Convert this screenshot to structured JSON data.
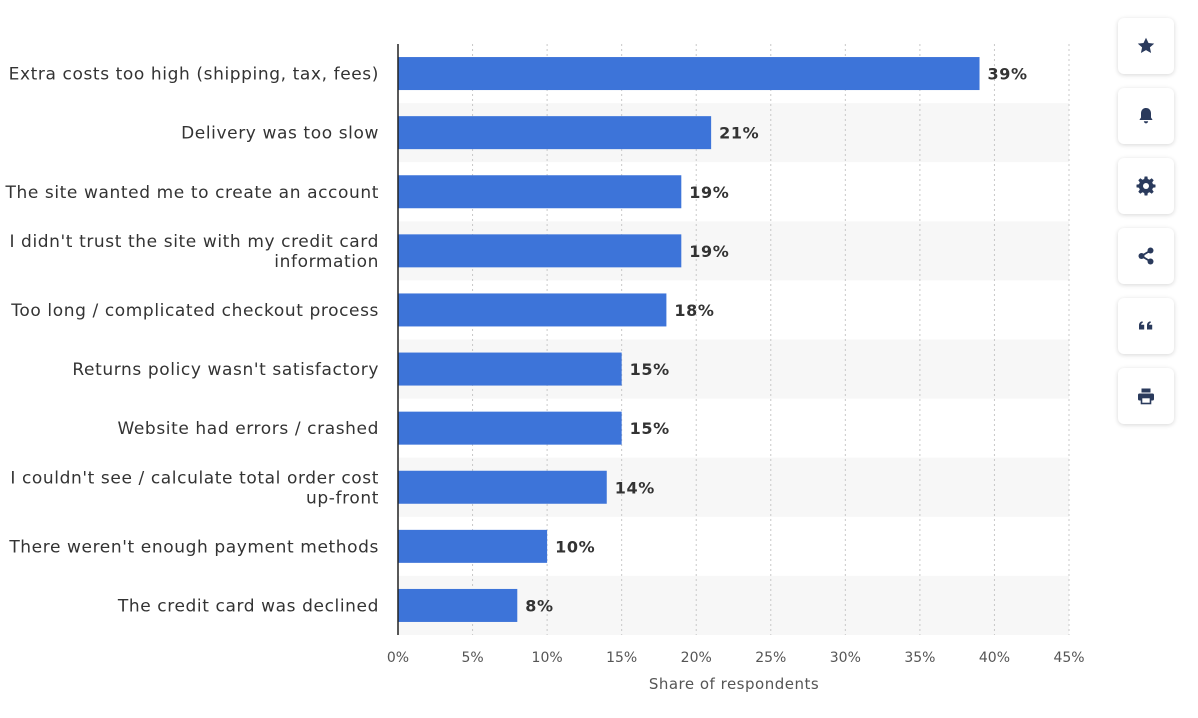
{
  "chart_data": {
    "type": "bar",
    "orientation": "horizontal",
    "categories": [
      [
        "Extra costs too high (shipping, tax, fees)"
      ],
      [
        "Delivery was too slow"
      ],
      [
        "The site wanted me to create an account"
      ],
      [
        "I didn't trust the site with my credit card",
        "information"
      ],
      [
        "Too long / complicated checkout process"
      ],
      [
        "Returns policy wasn't satisfactory"
      ],
      [
        "Website had errors / crashed"
      ],
      [
        "I couldn't see / calculate total order cost",
        "up-front"
      ],
      [
        "There weren't enough payment methods"
      ],
      [
        "The credit card was declined"
      ]
    ],
    "values": [
      39,
      21,
      19,
      19,
      18,
      15,
      15,
      14,
      10,
      8
    ],
    "value_labels": [
      "39%",
      "21%",
      "19%",
      "19%",
      "18%",
      "15%",
      "15%",
      "14%",
      "10%",
      "8%"
    ],
    "xlabel": "Share of respondents",
    "xlim": [
      0,
      45
    ],
    "x_ticks": [
      0,
      5,
      10,
      15,
      20,
      25,
      30,
      35,
      40,
      45
    ],
    "x_tick_labels": [
      "0%",
      "5%",
      "10%",
      "15%",
      "20%",
      "25%",
      "30%",
      "35%",
      "40%",
      "45%"
    ],
    "grid": true,
    "legend": "none",
    "bar_color": "#3d74d9",
    "band_color": "#f7f7f7"
  },
  "toolbar": {
    "items": [
      {
        "icon": "star-icon",
        "action": "favorite-button"
      },
      {
        "icon": "bell-icon",
        "action": "notification-button"
      },
      {
        "icon": "gear-icon",
        "action": "settings-button"
      },
      {
        "icon": "share-icon",
        "action": "share-button"
      },
      {
        "icon": "quote-icon",
        "action": "cite-button"
      },
      {
        "icon": "printer-icon",
        "action": "print-button"
      }
    ]
  }
}
